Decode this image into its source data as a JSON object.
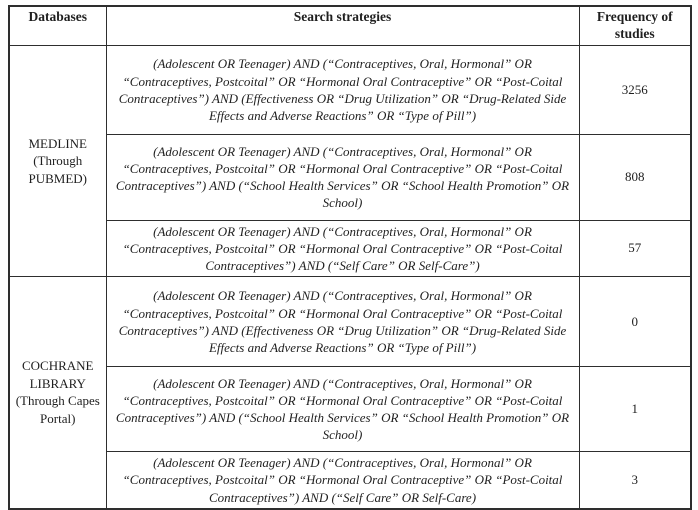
{
  "table": {
    "headers": {
      "databases": "Databases",
      "strategies": "Search strategies",
      "frequency": "Frequency of studies"
    },
    "sections": [
      {
        "database": "MEDLINE (Through PUBMED)",
        "rows": [
          {
            "strategy": "(Adolescent OR Teenager) AND (“Contraceptives, Oral, Hormonal” OR “Contraceptives, Postcoital” OR “Hormonal Oral Contraceptive” OR “Post-Coital Contraceptives”) AND (Effectiveness OR “Drug Utilization” OR “Drug-Related Side Effects and Adverse Reactions” OR “Type of Pill”)",
            "frequency": "3256"
          },
          {
            "strategy": "(Adolescent OR Teenager) AND (“Contraceptives, Oral, Hormonal” OR “Contraceptives, Postcoital” OR “Hormonal Oral Contraceptive” OR “Post-Coital Contraceptives”) AND (“School Health Services” OR “School Health Promotion” OR School)",
            "frequency": "808"
          },
          {
            "strategy": "(Adolescent OR Teenager) AND (“Contraceptives, Oral, Hormonal” OR “Contraceptives, Postcoital” OR “Hormonal Oral Contraceptive” OR “Post-Coital Contraceptives”) AND (“Self Care” OR Self-Care”)",
            "frequency": "57"
          }
        ]
      },
      {
        "database": "COCHRANE LIBRARY (Through Capes Portal)",
        "rows": [
          {
            "strategy": "(Adolescent OR Teenager) AND (“Contraceptives, Oral, Hormonal” OR “Contraceptives, Postcoital” OR “Hormonal Oral Contraceptive” OR “Post-Coital Contraceptives”) AND (Effectiveness OR “Drug Utilization” OR “Drug-Related Side Effects and Adverse Reactions” OR “Type of Pill”)",
            "frequency": "0"
          },
          {
            "strategy": "(Adolescent OR Teenager) AND (“Contraceptives, Oral, Hormonal” OR “Contraceptives, Postcoital” OR “Hormonal Oral Contraceptive” OR “Post-Coital Contraceptives”) AND (“School Health Services” OR “School Health Promotion” OR School)",
            "frequency": "1"
          },
          {
            "strategy": "(Adolescent OR Teenager) AND (“Contraceptives, Oral, Hormonal” OR “Contraceptives, Postcoital” OR “Hormonal Oral Contraceptive” OR “Post-Coital Contraceptives”) AND (“Self Care” OR Self-Care)",
            "frequency": "3"
          }
        ]
      }
    ]
  }
}
